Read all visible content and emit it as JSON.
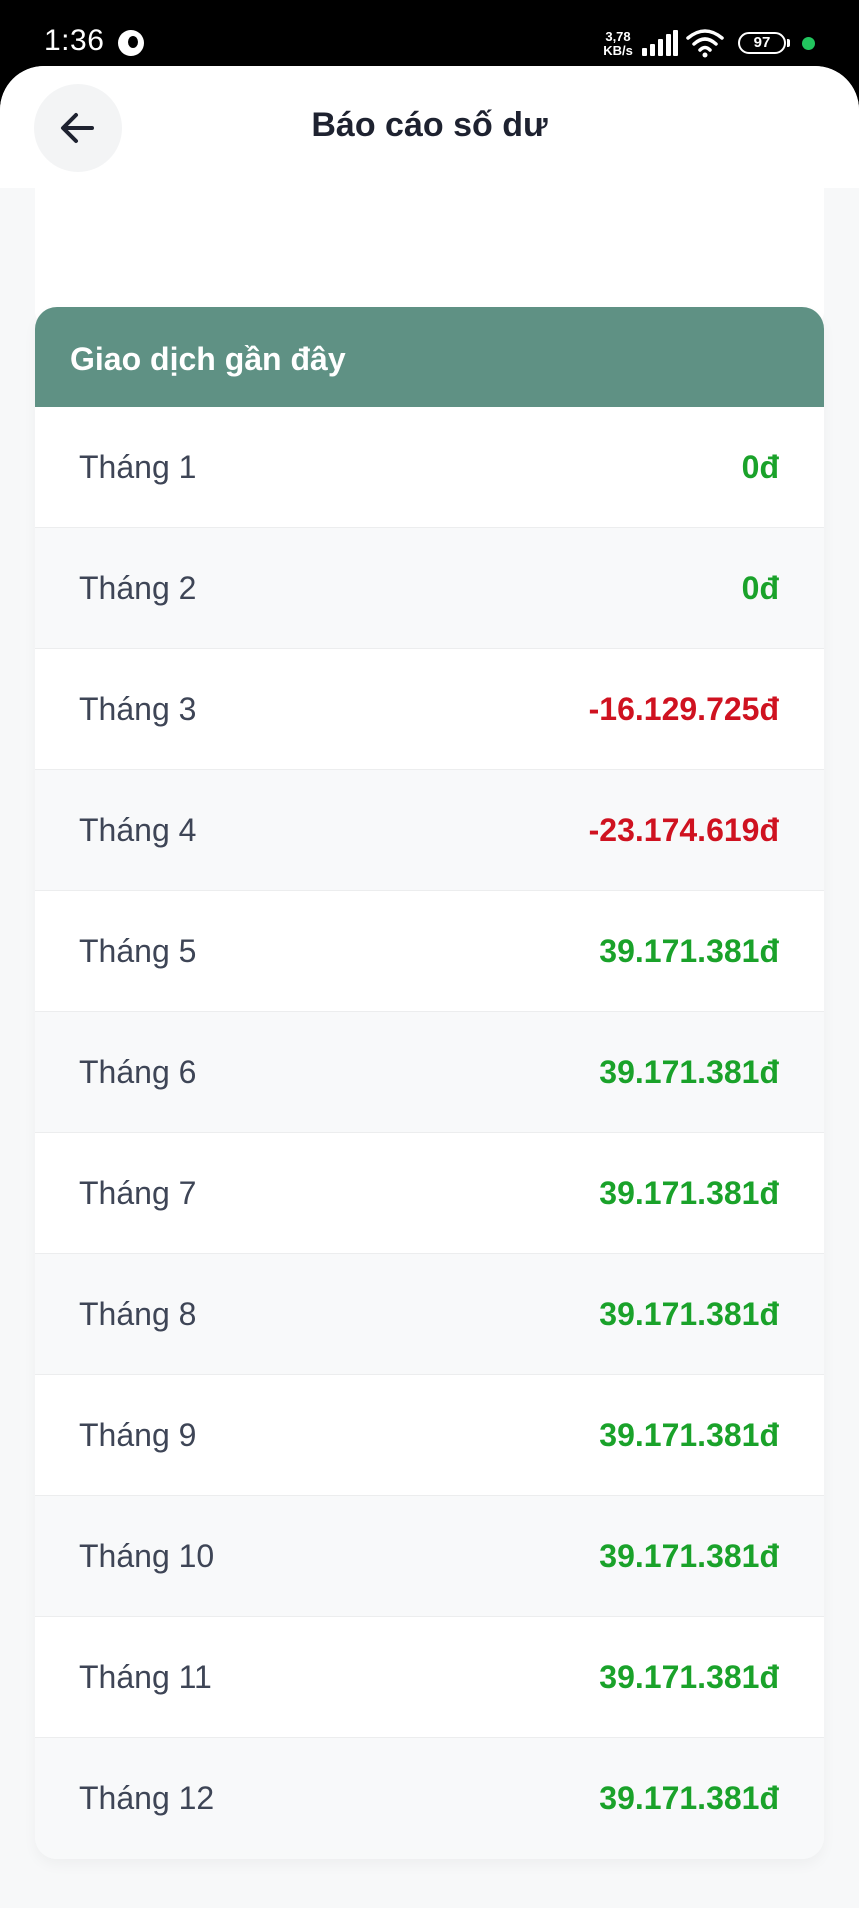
{
  "status_bar": {
    "time": "1:36",
    "net_speed_value": "3,78",
    "net_speed_unit": "KB/s",
    "battery": "97"
  },
  "header": {
    "title": "Báo cáo số dư"
  },
  "card": {
    "title": "Giao dịch gần đây",
    "rows": [
      {
        "label": "Tháng 1",
        "value": "0đ",
        "sign": "positive"
      },
      {
        "label": "Tháng 2",
        "value": "0đ",
        "sign": "positive"
      },
      {
        "label": "Tháng 3",
        "value": "-16.129.725đ",
        "sign": "negative"
      },
      {
        "label": "Tháng 4",
        "value": "-23.174.619đ",
        "sign": "negative"
      },
      {
        "label": "Tháng 5",
        "value": "39.171.381đ",
        "sign": "positive"
      },
      {
        "label": "Tháng 6",
        "value": "39.171.381đ",
        "sign": "positive"
      },
      {
        "label": "Tháng 7",
        "value": "39.171.381đ",
        "sign": "positive"
      },
      {
        "label": "Tháng 8",
        "value": "39.171.381đ",
        "sign": "positive"
      },
      {
        "label": "Tháng 9",
        "value": "39.171.381đ",
        "sign": "positive"
      },
      {
        "label": "Tháng 10",
        "value": "39.171.381đ",
        "sign": "positive"
      },
      {
        "label": "Tháng 11",
        "value": "39.171.381đ",
        "sign": "positive"
      },
      {
        "label": "Tháng 12",
        "value": "39.171.381đ",
        "sign": "positive"
      }
    ]
  },
  "colors": {
    "header_green": "#5f9184",
    "positive": "#1aa22a",
    "negative": "#cf1220",
    "status_dot": "#22c55e"
  },
  "icons": {
    "back": "arrow-left-icon",
    "app": "app-notification-icon",
    "signal": "signal-bars-icon",
    "wifi": "wifi-icon",
    "battery": "battery-icon"
  }
}
